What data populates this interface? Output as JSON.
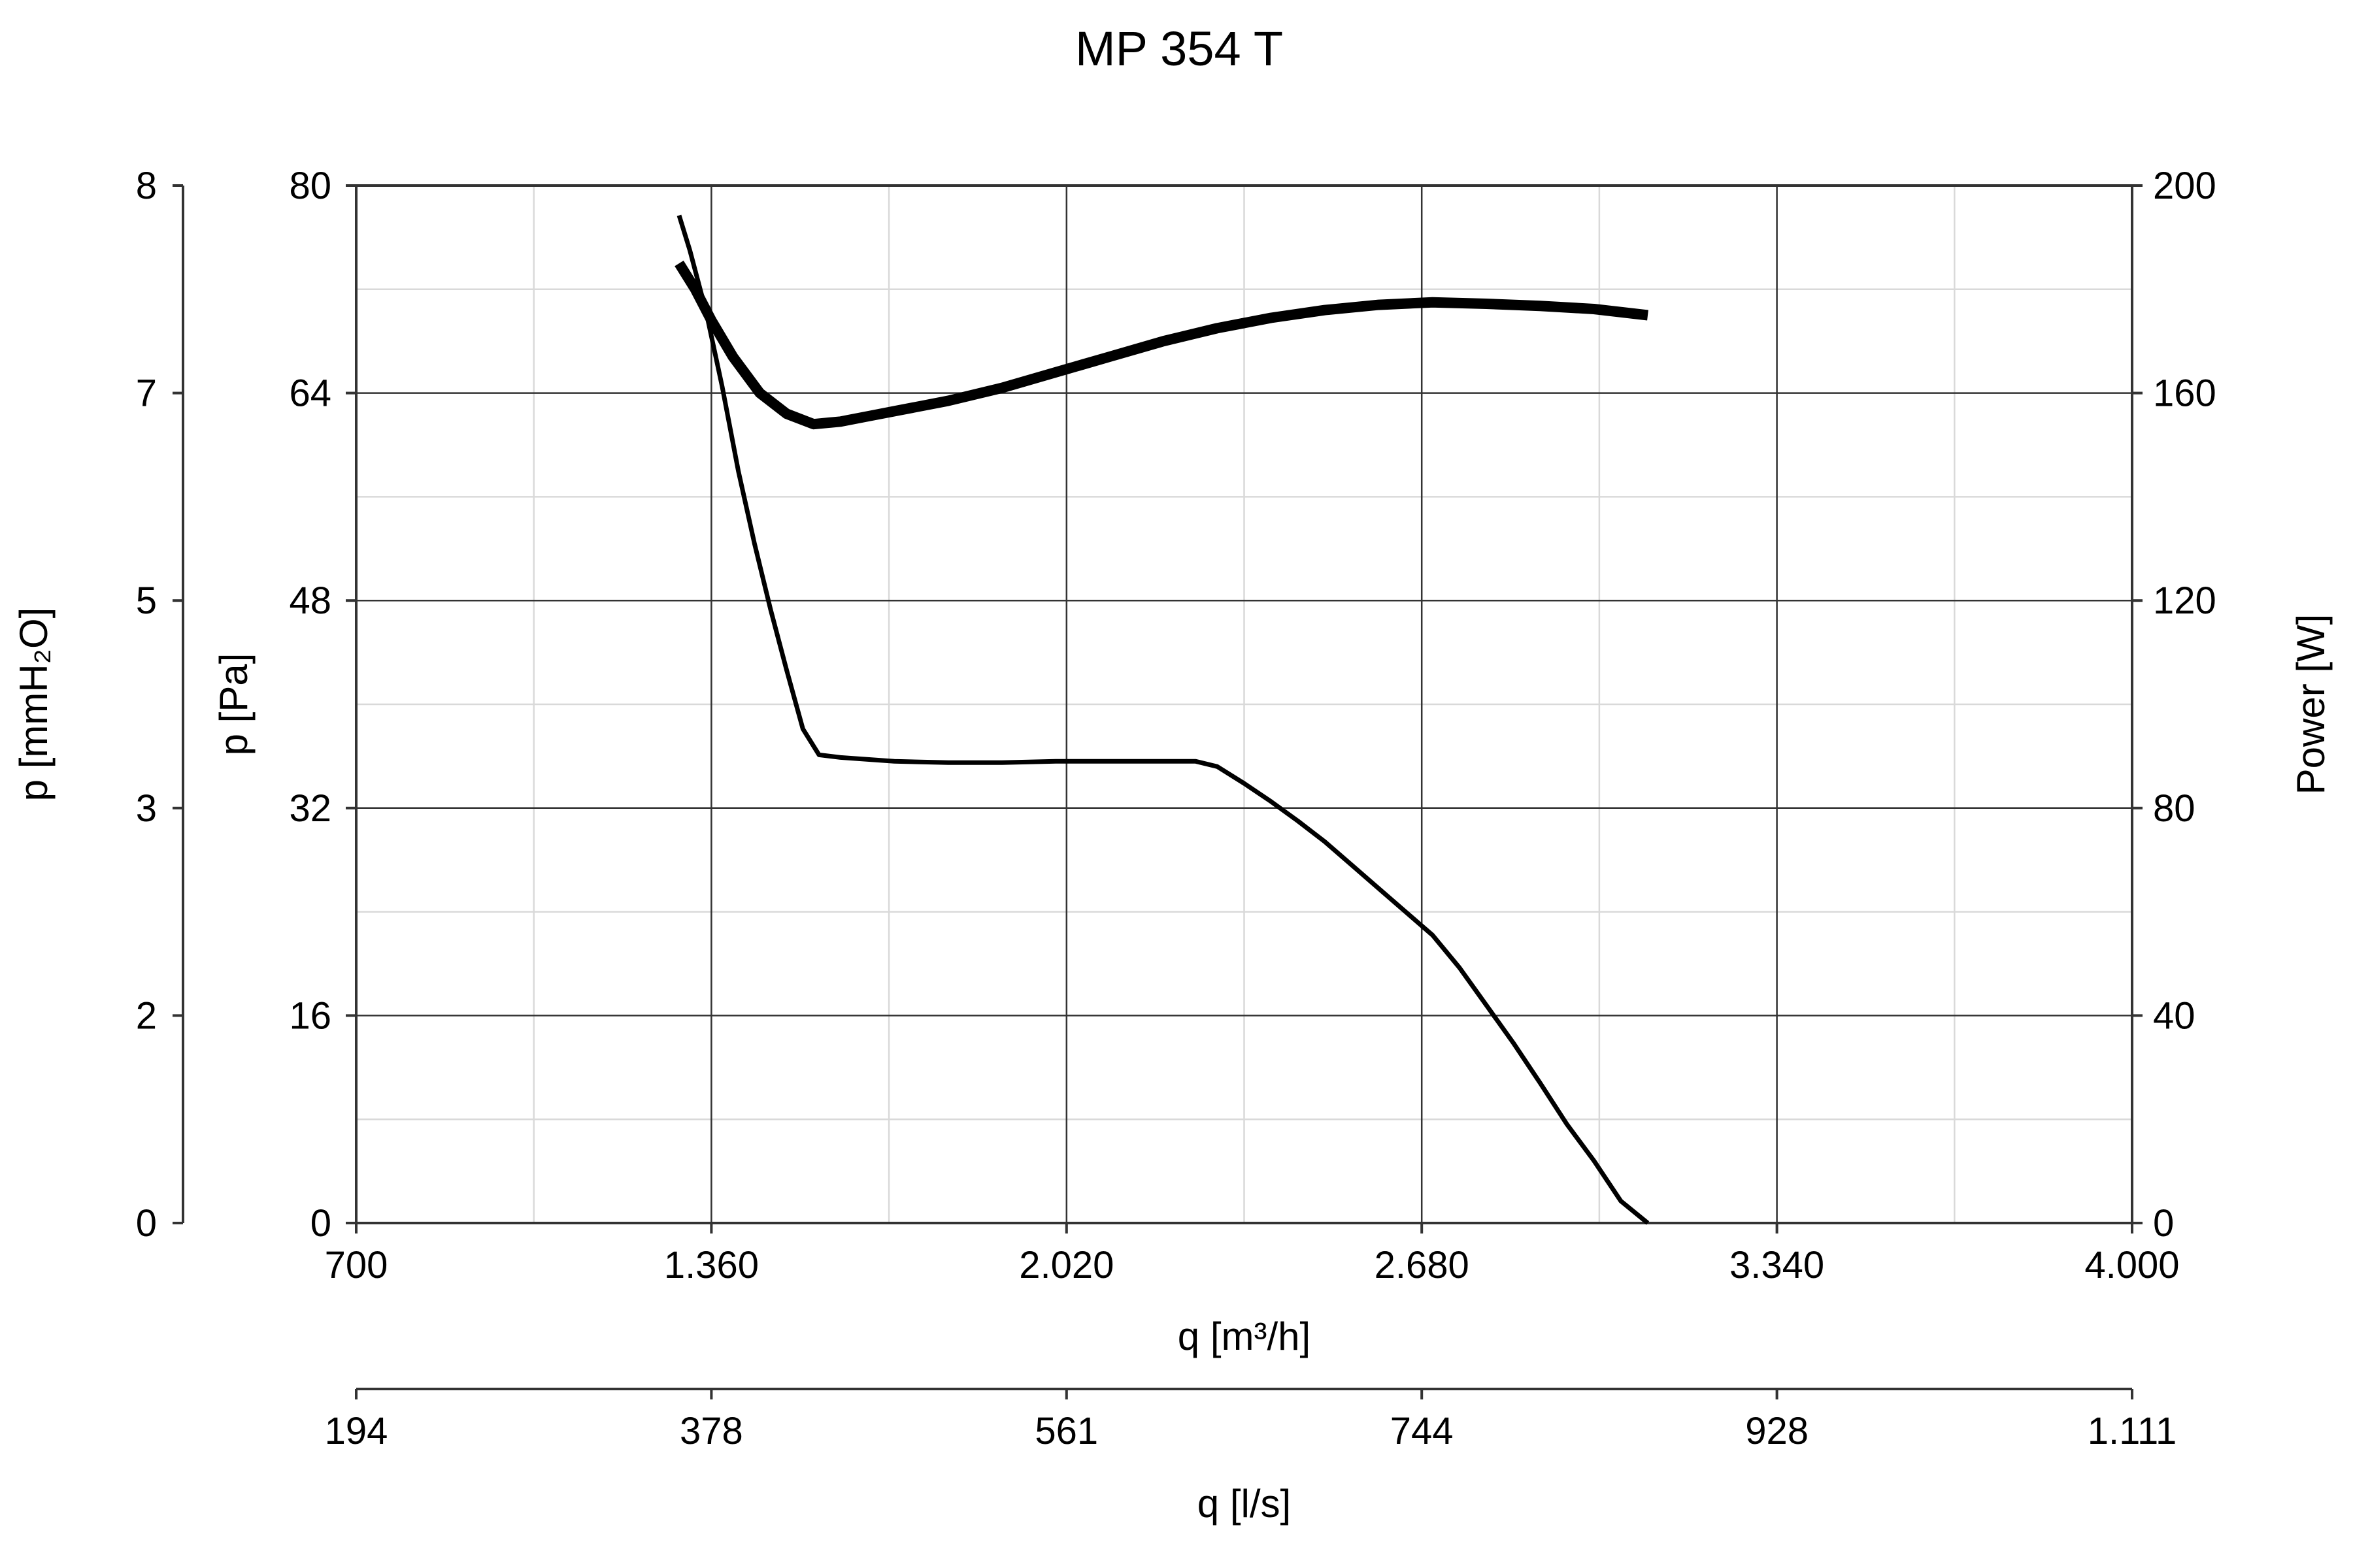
{
  "chart_data": {
    "type": "line",
    "title": "MP 354 T",
    "x_axis_primary": {
      "label": "q [m³/h]",
      "range": [
        700,
        4000
      ],
      "ticks": [
        700,
        1360,
        2020,
        2680,
        3340,
        4000
      ],
      "tick_labels": [
        "700",
        "1.360",
        "2.020",
        "2.680",
        "3.340",
        "4.000"
      ]
    },
    "x_axis_secondary": {
      "label": "q [l/s]",
      "tick_labels": [
        "194",
        "378",
        "561",
        "744",
        "928",
        "1.111"
      ]
    },
    "y_axis_pressure_pa": {
      "label": "p [Pa]",
      "range": [
        0,
        80
      ],
      "ticks": [
        0,
        16,
        32,
        48,
        64,
        80
      ],
      "tick_labels": [
        "0",
        "16",
        "32",
        "48",
        "64",
        "80"
      ]
    },
    "y_axis_pressure_mmh2o": {
      "label": "p [mmH₂O]",
      "tick_labels": [
        "0",
        "2",
        "3",
        "5",
        "7",
        "8"
      ]
    },
    "y_axis_power": {
      "label": "Power [W]",
      "range": [
        0,
        200
      ],
      "ticks": [
        0,
        40,
        80,
        120,
        160,
        200
      ],
      "tick_labels": [
        "0",
        "40",
        "80",
        "120",
        "160",
        "200"
      ]
    },
    "grid": true,
    "series": [
      {
        "axis": "pressure",
        "x": [
          1300,
          1320,
          1350,
          1380,
          1410,
          1440,
          1470,
          1500,
          1530,
          1560,
          1600,
          1700,
          1800,
          1900,
          2000,
          2100,
          2200,
          2260,
          2300,
          2350,
          2400,
          2450,
          2500,
          2550,
          2600,
          2650,
          2700,
          2750,
          2800,
          2850,
          2900,
          2950,
          3000,
          3050,
          3100
        ],
        "y": [
          77.7,
          75.0,
          70.3,
          64.5,
          58.0,
          52.4,
          47.3,
          42.6,
          38.1,
          36.1,
          35.9,
          35.6,
          35.5,
          35.5,
          35.6,
          35.6,
          35.6,
          35.6,
          35.2,
          33.9,
          32.5,
          31.0,
          29.4,
          27.6,
          25.8,
          24.0,
          22.2,
          19.7,
          16.8,
          13.9,
          10.8,
          7.6,
          4.8,
          1.7,
          0
        ]
      },
      {
        "axis": "power",
        "x": [
          1300,
          1330,
          1360,
          1400,
          1450,
          1500,
          1550,
          1600,
          1650,
          1700,
          1800,
          1900,
          2000,
          2100,
          2200,
          2300,
          2400,
          2500,
          2600,
          2700,
          2800,
          2900,
          3000,
          3100
        ],
        "y": [
          185,
          180,
          174,
          167,
          160,
          156,
          154,
          154.5,
          155.5,
          156.5,
          158.5,
          161,
          164,
          167,
          170,
          172.5,
          174.5,
          176,
          177,
          177.5,
          177.2,
          176.8,
          176.2,
          175
        ]
      }
    ]
  }
}
